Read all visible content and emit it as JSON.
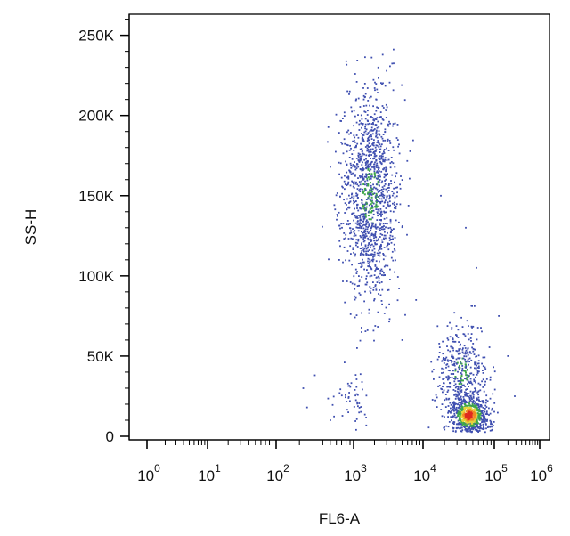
{
  "chart_data": {
    "type": "scatter",
    "subtype": "flow-cytometry-density-dot-plot",
    "xlabel": "FL6-A",
    "ylabel": "SS-H",
    "x_scale": "log",
    "x_ticks": [
      {
        "base": "10",
        "exp": "0"
      },
      {
        "base": "10",
        "exp": "1"
      },
      {
        "base": "10",
        "exp": "2"
      },
      {
        "base": "10",
        "exp": "3"
      },
      {
        "base": "10",
        "exp": "4"
      },
      {
        "base": "10",
        "exp": "5"
      },
      {
        "base": "10",
        "exp": "6"
      }
    ],
    "y_scale": "linear",
    "y_ticks": [
      "0",
      "50K",
      "100K",
      "150K",
      "200K",
      "250K"
    ],
    "y_tick_values": [
      0,
      50000,
      100000,
      150000,
      200000,
      250000
    ],
    "ylim": [
      0,
      262000
    ],
    "grid": false,
    "legend": "none",
    "colors": {
      "low": "#3f4fb0",
      "mid": "#3fa64a",
      "high_yellow": "#e8d43a",
      "high_orange": "#f08a25",
      "peak": "#e02a1e",
      "axis": "#000000"
    },
    "populations": [
      {
        "x_log10_center": 3.25,
        "x_log10_sd": 0.2,
        "y_center": 150000,
        "y_sd": 32000,
        "events": 1300,
        "dense_core": "green"
      },
      {
        "x_log10_center": 4.55,
        "x_log10_sd": 0.18,
        "y_center": 40000,
        "y_sd": 15000,
        "events": 420,
        "dense_core": "green"
      },
      {
        "x_log10_center": 4.65,
        "x_log10_sd": 0.13,
        "y_center": 13000,
        "y_sd": 6000,
        "events": 650,
        "dense_core": "red"
      },
      {
        "x_log10_center": 3.0,
        "x_log10_sd": 0.14,
        "y_center": 25000,
        "y_sd": 10000,
        "events": 50,
        "dense_core": "none"
      }
    ]
  }
}
